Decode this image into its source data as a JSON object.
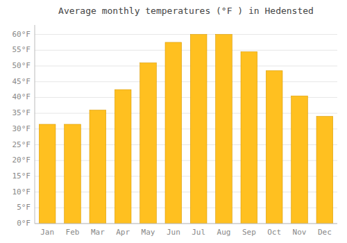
{
  "chart_data": {
    "type": "bar",
    "title": "Average monthly temperatures (°F ) in Hedensted",
    "categories": [
      "Jan",
      "Feb",
      "Mar",
      "Apr",
      "May",
      "Jun",
      "Jul",
      "Aug",
      "Sep",
      "Oct",
      "Nov",
      "Dec"
    ],
    "values": [
      31.5,
      31.5,
      36.0,
      42.5,
      51.0,
      57.5,
      60.0,
      60.0,
      54.5,
      48.5,
      40.5,
      34.0
    ],
    "color": "#FFC020",
    "ylim": [
      0,
      63
    ],
    "yticks": [
      {
        "value": 0,
        "label": "0°F"
      },
      {
        "value": 5,
        "label": "5°F"
      },
      {
        "value": 10,
        "label": "10°F"
      },
      {
        "value": 15,
        "label": "15°F"
      },
      {
        "value": 20,
        "label": "20°F"
      },
      {
        "value": 25,
        "label": "25°F"
      },
      {
        "value": 30,
        "label": "30°F"
      },
      {
        "value": 35,
        "label": "35°F"
      },
      {
        "value": 40,
        "label": "40°F"
      },
      {
        "value": 45,
        "label": "45°F"
      },
      {
        "value": 50,
        "label": "50°F"
      },
      {
        "value": 55,
        "label": "55°F"
      },
      {
        "value": 60,
        "label": "60°F"
      }
    ],
    "grid": true
  }
}
